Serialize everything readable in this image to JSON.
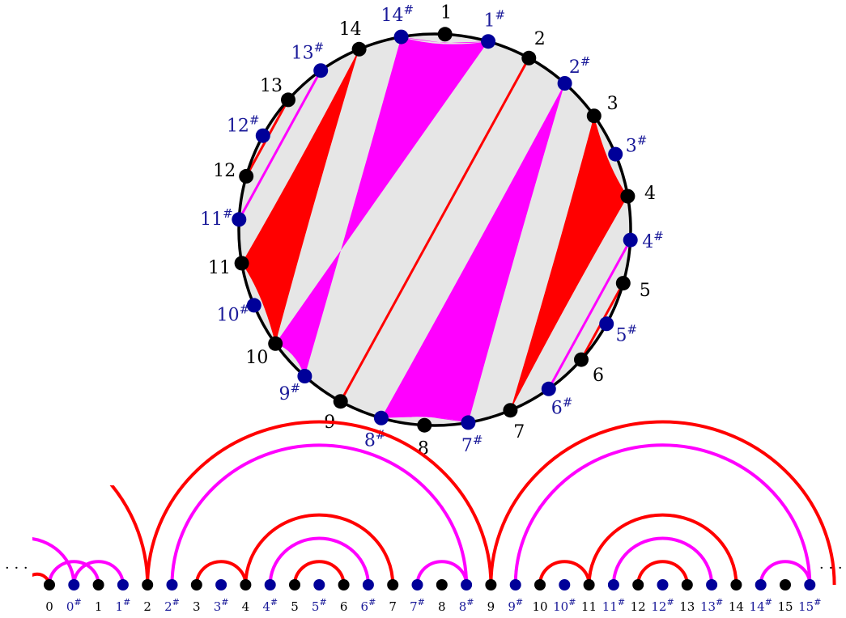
{
  "colors": {
    "red": "#ff0000",
    "magenta": "#ff00ff",
    "gray_region": "#e6e6e6",
    "black_node": "#000000",
    "blue_node": "#000099",
    "blue_text": "#1a1a99",
    "circle_stroke": "#000000"
  },
  "circle": {
    "nodes": [
      {
        "id": "1",
        "kind": "black",
        "label": "1",
        "sup": ""
      },
      {
        "id": "1s",
        "kind": "blue",
        "label": "1",
        "sup": "#"
      },
      {
        "id": "2",
        "kind": "black",
        "label": "2",
        "sup": ""
      },
      {
        "id": "2s",
        "kind": "blue",
        "label": "2",
        "sup": "#"
      },
      {
        "id": "3",
        "kind": "black",
        "label": "3",
        "sup": ""
      },
      {
        "id": "3s",
        "kind": "blue",
        "label": "3",
        "sup": "#"
      },
      {
        "id": "4",
        "kind": "black",
        "label": "4",
        "sup": ""
      },
      {
        "id": "4s",
        "kind": "blue",
        "label": "4",
        "sup": "#"
      },
      {
        "id": "5",
        "kind": "black",
        "label": "5",
        "sup": ""
      },
      {
        "id": "5s",
        "kind": "blue",
        "label": "5",
        "sup": "#"
      },
      {
        "id": "6",
        "kind": "black",
        "label": "6",
        "sup": ""
      },
      {
        "id": "6s",
        "kind": "blue",
        "label": "6",
        "sup": "#"
      },
      {
        "id": "7",
        "kind": "black",
        "label": "7",
        "sup": ""
      },
      {
        "id": "7s",
        "kind": "blue",
        "label": "7",
        "sup": "#"
      },
      {
        "id": "8",
        "kind": "black",
        "label": "8",
        "sup": ""
      },
      {
        "id": "8s",
        "kind": "blue",
        "label": "8",
        "sup": "#"
      },
      {
        "id": "9",
        "kind": "black",
        "label": "9",
        "sup": ""
      },
      {
        "id": "9s",
        "kind": "blue",
        "label": "9",
        "sup": "#"
      },
      {
        "id": "10",
        "kind": "black",
        "label": "10",
        "sup": ""
      },
      {
        "id": "10s",
        "kind": "blue",
        "label": "10",
        "sup": "#"
      },
      {
        "id": "11",
        "kind": "black",
        "label": "11",
        "sup": ""
      },
      {
        "id": "11s",
        "kind": "blue",
        "label": "11",
        "sup": "#"
      },
      {
        "id": "12",
        "kind": "black",
        "label": "12",
        "sup": ""
      },
      {
        "id": "12s",
        "kind": "blue",
        "label": "12",
        "sup": "#"
      },
      {
        "id": "13",
        "kind": "black",
        "label": "13",
        "sup": ""
      },
      {
        "id": "13s",
        "kind": "blue",
        "label": "13",
        "sup": "#"
      },
      {
        "id": "14",
        "kind": "black",
        "label": "14",
        "sup": ""
      },
      {
        "id": "14s",
        "kind": "blue",
        "label": "14",
        "sup": "#"
      }
    ],
    "gray_regions": [
      [
        "14",
        "14s",
        "1",
        "1s",
        "2",
        "9",
        "9s",
        "10",
        "10s",
        "11",
        "11s",
        "12",
        "13",
        "13s"
      ],
      [
        "2",
        "2s",
        "3",
        "3s",
        "4",
        "4s",
        "5",
        "6",
        "6s",
        "7",
        "7s",
        "8",
        "8s",
        "9"
      ]
    ],
    "red_polygons": [
      [
        "14",
        "11",
        "10"
      ],
      [
        "3",
        "4",
        "7"
      ]
    ],
    "red_regions_curved": [
      {
        "chord": [
          "11",
          "14"
        ],
        "via": [
          "11s",
          "12",
          "13",
          "13s"
        ]
      },
      {
        "chord": [
          "4",
          "7"
        ],
        "via": [
          "4s",
          "5",
          "6",
          "6s"
        ]
      }
    ],
    "red_curves": [
      {
        "from": "11",
        "to": "10",
        "via": "10s"
      },
      {
        "from": "3",
        "to": "4",
        "via": "3s"
      }
    ],
    "magenta_polygons": [
      [
        "14s",
        "1s",
        "10",
        "9s"
      ],
      [
        "2s",
        "7s",
        "8s"
      ]
    ],
    "magenta_curves": [
      {
        "from": "14s",
        "to": "1s",
        "via": "1"
      },
      {
        "from": "8s",
        "to": "7s",
        "via": "8"
      }
    ],
    "red_chords": [
      [
        "2",
        "9"
      ],
      [
        "12",
        "13"
      ],
      [
        "5",
        "6"
      ]
    ],
    "red_inner_arcs": [
      [
        "12",
        "13"
      ],
      [
        "5",
        "6"
      ]
    ],
    "magenta_chords": [
      [
        "11s",
        "13s"
      ],
      [
        "4s",
        "6s"
      ]
    ]
  },
  "line": {
    "nodes": [
      {
        "kind": "black",
        "label": "0",
        "sup": ""
      },
      {
        "kind": "blue",
        "label": "0",
        "sup": "#"
      },
      {
        "kind": "black",
        "label": "1",
        "sup": ""
      },
      {
        "kind": "blue",
        "label": "1",
        "sup": "#"
      },
      {
        "kind": "black",
        "label": "2",
        "sup": ""
      },
      {
        "kind": "blue",
        "label": "2",
        "sup": "#"
      },
      {
        "kind": "black",
        "label": "3",
        "sup": ""
      },
      {
        "kind": "blue",
        "label": "3",
        "sup": "#"
      },
      {
        "kind": "black",
        "label": "4",
        "sup": ""
      },
      {
        "kind": "blue",
        "label": "4",
        "sup": "#"
      },
      {
        "kind": "black",
        "label": "5",
        "sup": ""
      },
      {
        "kind": "blue",
        "label": "5",
        "sup": "#"
      },
      {
        "kind": "black",
        "label": "6",
        "sup": ""
      },
      {
        "kind": "blue",
        "label": "6",
        "sup": "#"
      },
      {
        "kind": "black",
        "label": "7",
        "sup": ""
      },
      {
        "kind": "blue",
        "label": "7",
        "sup": "#"
      },
      {
        "kind": "black",
        "label": "8",
        "sup": ""
      },
      {
        "kind": "blue",
        "label": "8",
        "sup": "#"
      },
      {
        "kind": "black",
        "label": "9",
        "sup": ""
      },
      {
        "kind": "blue",
        "label": "9",
        "sup": "#"
      },
      {
        "kind": "black",
        "label": "10",
        "sup": ""
      },
      {
        "kind": "blue",
        "label": "10",
        "sup": "#"
      },
      {
        "kind": "black",
        "label": "11",
        "sup": ""
      },
      {
        "kind": "blue",
        "label": "11",
        "sup": "#"
      },
      {
        "kind": "black",
        "label": "12",
        "sup": ""
      },
      {
        "kind": "blue",
        "label": "12",
        "sup": "#"
      },
      {
        "kind": "black",
        "label": "13",
        "sup": ""
      },
      {
        "kind": "blue",
        "label": "13",
        "sup": "#"
      },
      {
        "kind": "black",
        "label": "14",
        "sup": ""
      },
      {
        "kind": "blue",
        "label": "14",
        "sup": "#"
      },
      {
        "kind": "black",
        "label": "15",
        "sup": ""
      },
      {
        "kind": "blue",
        "label": "15",
        "sup": "#"
      }
    ],
    "arcs": [
      {
        "from": 0,
        "to": 2,
        "color": "magenta"
      },
      {
        "from": 1,
        "to": 3,
        "color": "magenta"
      },
      {
        "from": 4,
        "to": 18,
        "color": "red"
      },
      {
        "from": 5,
        "to": 17,
        "color": "magenta"
      },
      {
        "from": 6,
        "to": 8,
        "color": "red"
      },
      {
        "from": 8,
        "to": 14,
        "color": "red"
      },
      {
        "from": 9,
        "to": 13,
        "color": "magenta"
      },
      {
        "from": 10,
        "to": 12,
        "color": "red"
      },
      {
        "from": 15,
        "to": 17,
        "color": "magenta"
      },
      {
        "from": 18,
        "to": 32,
        "color": "red"
      },
      {
        "from": 19,
        "to": 31,
        "color": "magenta"
      },
      {
        "from": 20,
        "to": 22,
        "color": "red"
      },
      {
        "from": 22,
        "to": 28,
        "color": "red"
      },
      {
        "from": 23,
        "to": 27,
        "color": "magenta"
      },
      {
        "from": 24,
        "to": 26,
        "color": "red"
      },
      {
        "from": 29,
        "to": 31,
        "color": "magenta"
      }
    ],
    "partial_arcs": [
      {
        "from": -10,
        "to": 4,
        "color": "red"
      },
      {
        "from": -3,
        "to": 1,
        "color": "magenta"
      },
      {
        "from": -1,
        "to": 0,
        "color": "red"
      }
    ],
    "ellipsis_left": "· · ·",
    "ellipsis_right": "· · ·"
  }
}
